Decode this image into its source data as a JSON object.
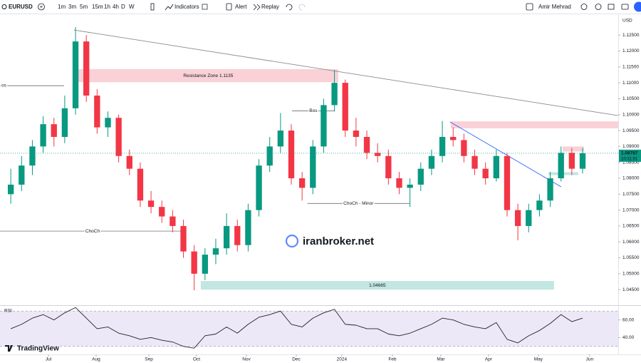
{
  "toolbar": {
    "symbol": "EURUSD",
    "intervals": [
      "1m",
      "3m",
      "5m",
      "15m",
      "1h",
      "4h",
      "D",
      "W"
    ],
    "indicators": "Indicators",
    "alert": "Alert",
    "replay": "Replay",
    "user": "Amir Mehrad"
  },
  "branding": "TradingView",
  "chart_data": [
    {
      "type": "candlestick",
      "currency": "USD",
      "up_color": "#089981",
      "down_color": "#f23645",
      "candles": [
        [
          1.075,
          1.083,
          1.072,
          1.078
        ],
        [
          1.078,
          1.087,
          1.076,
          1.084
        ],
        [
          1.084,
          1.092,
          1.081,
          1.09
        ],
        [
          1.09,
          1.0995,
          1.088,
          1.097
        ],
        [
          1.097,
          1.099,
          1.09,
          1.093
        ],
        [
          1.093,
          1.106,
          1.091,
          1.102
        ],
        [
          1.102,
          1.1275,
          1.1,
          1.123
        ],
        [
          1.123,
          1.125,
          1.104,
          1.106
        ],
        [
          1.106,
          1.108,
          1.094,
          1.096
        ],
        [
          1.096,
          1.101,
          1.093,
          1.099
        ],
        [
          1.099,
          1.1,
          1.085,
          1.087
        ],
        [
          1.087,
          1.089,
          1.081,
          1.083
        ],
        [
          1.083,
          1.085,
          1.071,
          1.073
        ],
        [
          1.073,
          1.076,
          1.069,
          1.071
        ],
        [
          1.071,
          1.073,
          1.066,
          1.068
        ],
        [
          1.068,
          1.07,
          1.063,
          1.065
        ],
        [
          1.065,
          1.067,
          1.055,
          1.057
        ],
        [
          1.057,
          1.059,
          1.0448,
          1.05
        ],
        [
          1.05,
          1.058,
          1.048,
          1.056
        ],
        [
          1.056,
          1.061,
          1.053,
          1.058
        ],
        [
          1.058,
          1.069,
          1.056,
          1.065
        ],
        [
          1.065,
          1.067,
          1.057,
          1.059
        ],
        [
          1.059,
          1.072,
          1.057,
          1.07
        ],
        [
          1.07,
          1.086,
          1.068,
          1.084
        ],
        [
          1.084,
          1.093,
          1.082,
          1.09
        ],
        [
          1.09,
          1.1005,
          1.088,
          1.095
        ],
        [
          1.095,
          1.097,
          1.078,
          1.08
        ],
        [
          1.08,
          1.082,
          1.073,
          1.077
        ],
        [
          1.077,
          1.092,
          1.075,
          1.09
        ],
        [
          1.09,
          1.105,
          1.088,
          1.103
        ],
        [
          1.103,
          1.114,
          1.101,
          1.11
        ],
        [
          1.11,
          1.111,
          1.093,
          1.095
        ],
        [
          1.095,
          1.099,
          1.09,
          1.093
        ],
        [
          1.093,
          1.095,
          1.086,
          1.088
        ],
        [
          1.088,
          1.091,
          1.085,
          1.087
        ],
        [
          1.087,
          1.089,
          1.078,
          1.08
        ],
        [
          1.08,
          1.082,
          1.075,
          1.077
        ],
        [
          1.077,
          1.08,
          1.071,
          1.078
        ],
        [
          1.078,
          1.085,
          1.076,
          1.083
        ],
        [
          1.083,
          1.089,
          1.081,
          1.087
        ],
        [
          1.087,
          1.098,
          1.085,
          1.093
        ],
        [
          1.093,
          1.096,
          1.09,
          1.092
        ],
        [
          1.092,
          1.094,
          1.085,
          1.087
        ],
        [
          1.087,
          1.089,
          1.081,
          1.083
        ],
        [
          1.083,
          1.085,
          1.078,
          1.08
        ],
        [
          1.08,
          1.089,
          1.079,
          1.087
        ],
        [
          1.087,
          1.088,
          1.068,
          1.07
        ],
        [
          1.07,
          1.072,
          1.0605,
          1.065
        ],
        [
          1.065,
          1.072,
          1.063,
          1.07
        ],
        [
          1.07,
          1.075,
          1.068,
          1.073
        ],
        [
          1.073,
          1.082,
          1.071,
          1.08
        ],
        [
          1.08,
          1.09,
          1.079,
          1.088
        ],
        [
          1.088,
          1.0895,
          1.081,
          1.083
        ],
        [
          1.083,
          1.0895,
          1.0815,
          1.08787
        ]
      ],
      "xlim": [
        -1,
        56.3
      ],
      "xticks": [
        {
          "value": 3.49,
          "label": "Jul"
        },
        {
          "value": 7.91,
          "label": "Aug"
        },
        {
          "value": 12.8,
          "label": "Sep"
        },
        {
          "value": 17.22,
          "label": "Oct"
        },
        {
          "value": 21.84,
          "label": "Nov"
        },
        {
          "value": 26.46,
          "label": "Dec"
        },
        {
          "value": 30.68,
          "label": "2024"
        },
        {
          "value": 35.37,
          "label": "Feb"
        },
        {
          "value": 39.86,
          "label": "Mar"
        },
        {
          "value": 44.28,
          "label": "Apr"
        },
        {
          "value": 48.9,
          "label": "May"
        },
        {
          "value": 53.65,
          "label": "Jun"
        }
      ],
      "ylim": [
        1.0401,
        1.1311
      ],
      "yticks": [
        {
          "value": 1.125,
          "label": "1.12500"
        },
        {
          "value": 1.12,
          "label": "1.12000"
        },
        {
          "value": 1.115,
          "label": "1.11500"
        },
        {
          "value": 1.11,
          "label": "1.11000"
        },
        {
          "value": 1.105,
          "label": "1.10500"
        },
        {
          "value": 1.1,
          "label": "1.10000"
        },
        {
          "value": 1.095,
          "label": "1.09500"
        },
        {
          "value": 1.09,
          "label": "1.09000"
        },
        {
          "value": 1.085,
          "label": "1.08500"
        },
        {
          "value": 1.08,
          "label": "1.08000"
        },
        {
          "value": 1.075,
          "label": "1.07500"
        },
        {
          "value": 1.07,
          "label": "1.07000"
        },
        {
          "value": 1.065,
          "label": "1.06500"
        },
        {
          "value": 1.06,
          "label": "1.06000"
        },
        {
          "value": 1.055,
          "label": "1.05500"
        },
        {
          "value": 1.05,
          "label": "1.05000"
        },
        {
          "value": 1.045,
          "label": "1.04500"
        }
      ],
      "last_price": 1.08787,
      "countdown": "10:31:51",
      "zones": [
        {
          "label": "Resistance Zone 1.1135",
          "from": 1.1102,
          "to": 1.1143,
          "x_from": 6.25,
          "x_to": 30.35,
          "color": "#f8c9d0"
        },
        {
          "from": 1.0957,
          "to": 1.0979,
          "x_from": 40.78,
          "x_to": 56.3,
          "color": "#f8c9d0"
        },
        {
          "label": "1.04665",
          "from": 1.045,
          "to": 1.0477,
          "x_from": 17.61,
          "x_to": 50.35,
          "color": "#b7e2dc"
        },
        {
          "from": 1.0884,
          "to": 1.09,
          "x_from": 51.15,
          "x_to": 53.13,
          "color": "#f8c9d0"
        },
        {
          "from": 1.081,
          "to": 1.0819,
          "x_from": 49.83,
          "x_to": 52.6,
          "color": "#b7e2dc"
        }
      ],
      "lines": [
        {
          "from": [
            5.86,
            1.1266
          ],
          "to": [
            56.3,
            1.0997
          ],
          "color": "#8a8a8a"
        },
        {
          "from": [
            40.72,
            1.0977
          ],
          "to": [
            51.01,
            1.0773
          ],
          "color": "#2962ff"
        },
        {
          "label": "os",
          "label_anchor": "start",
          "from": [
            -1,
            1.1091
          ],
          "to": [
            4.94,
            1.1091
          ],
          "color": "#555555"
        },
        {
          "label": "ChoCh",
          "label_anchor": "middle",
          "from": [
            -1,
            1.0634
          ],
          "to": [
            16.16,
            1.0634
          ],
          "color": "#555555"
        },
        {
          "label": "Bos",
          "label_anchor": "middle",
          "from": [
            26.06,
            1.1012
          ],
          "to": [
            30.02,
            1.1012
          ],
          "color": "#555555"
        },
        {
          "label": "ChoCh - Minor",
          "label_anchor": "middle",
          "from": [
            27.5,
            1.0721
          ],
          "to": [
            36.95,
            1.0721
          ],
          "color": "#555555"
        }
      ],
      "watermark": "iranbroker.net"
    },
    {
      "type": "line",
      "title": "RSI",
      "color": "#222222",
      "values": [
        50,
        55,
        62,
        66,
        60,
        68,
        74,
        62,
        50,
        52,
        45,
        42,
        38,
        40,
        37,
        35,
        30,
        28,
        42,
        44,
        52,
        45,
        55,
        63,
        66,
        70,
        55,
        52,
        62,
        68,
        72,
        55,
        54,
        50,
        50,
        44,
        42,
        45,
        50,
        55,
        62,
        60,
        55,
        52,
        50,
        57,
        38,
        34,
        42,
        48,
        56,
        66,
        58,
        62
      ],
      "xlim": [
        -1,
        56.3
      ],
      "ylim": [
        22.5,
        75
      ],
      "band": [
        30,
        70
      ],
      "band_color": "#ede8f7",
      "yticks": [
        {
          "value": 60,
          "label": "60.00"
        },
        {
          "value": 40,
          "label": "40.00"
        }
      ]
    }
  ]
}
